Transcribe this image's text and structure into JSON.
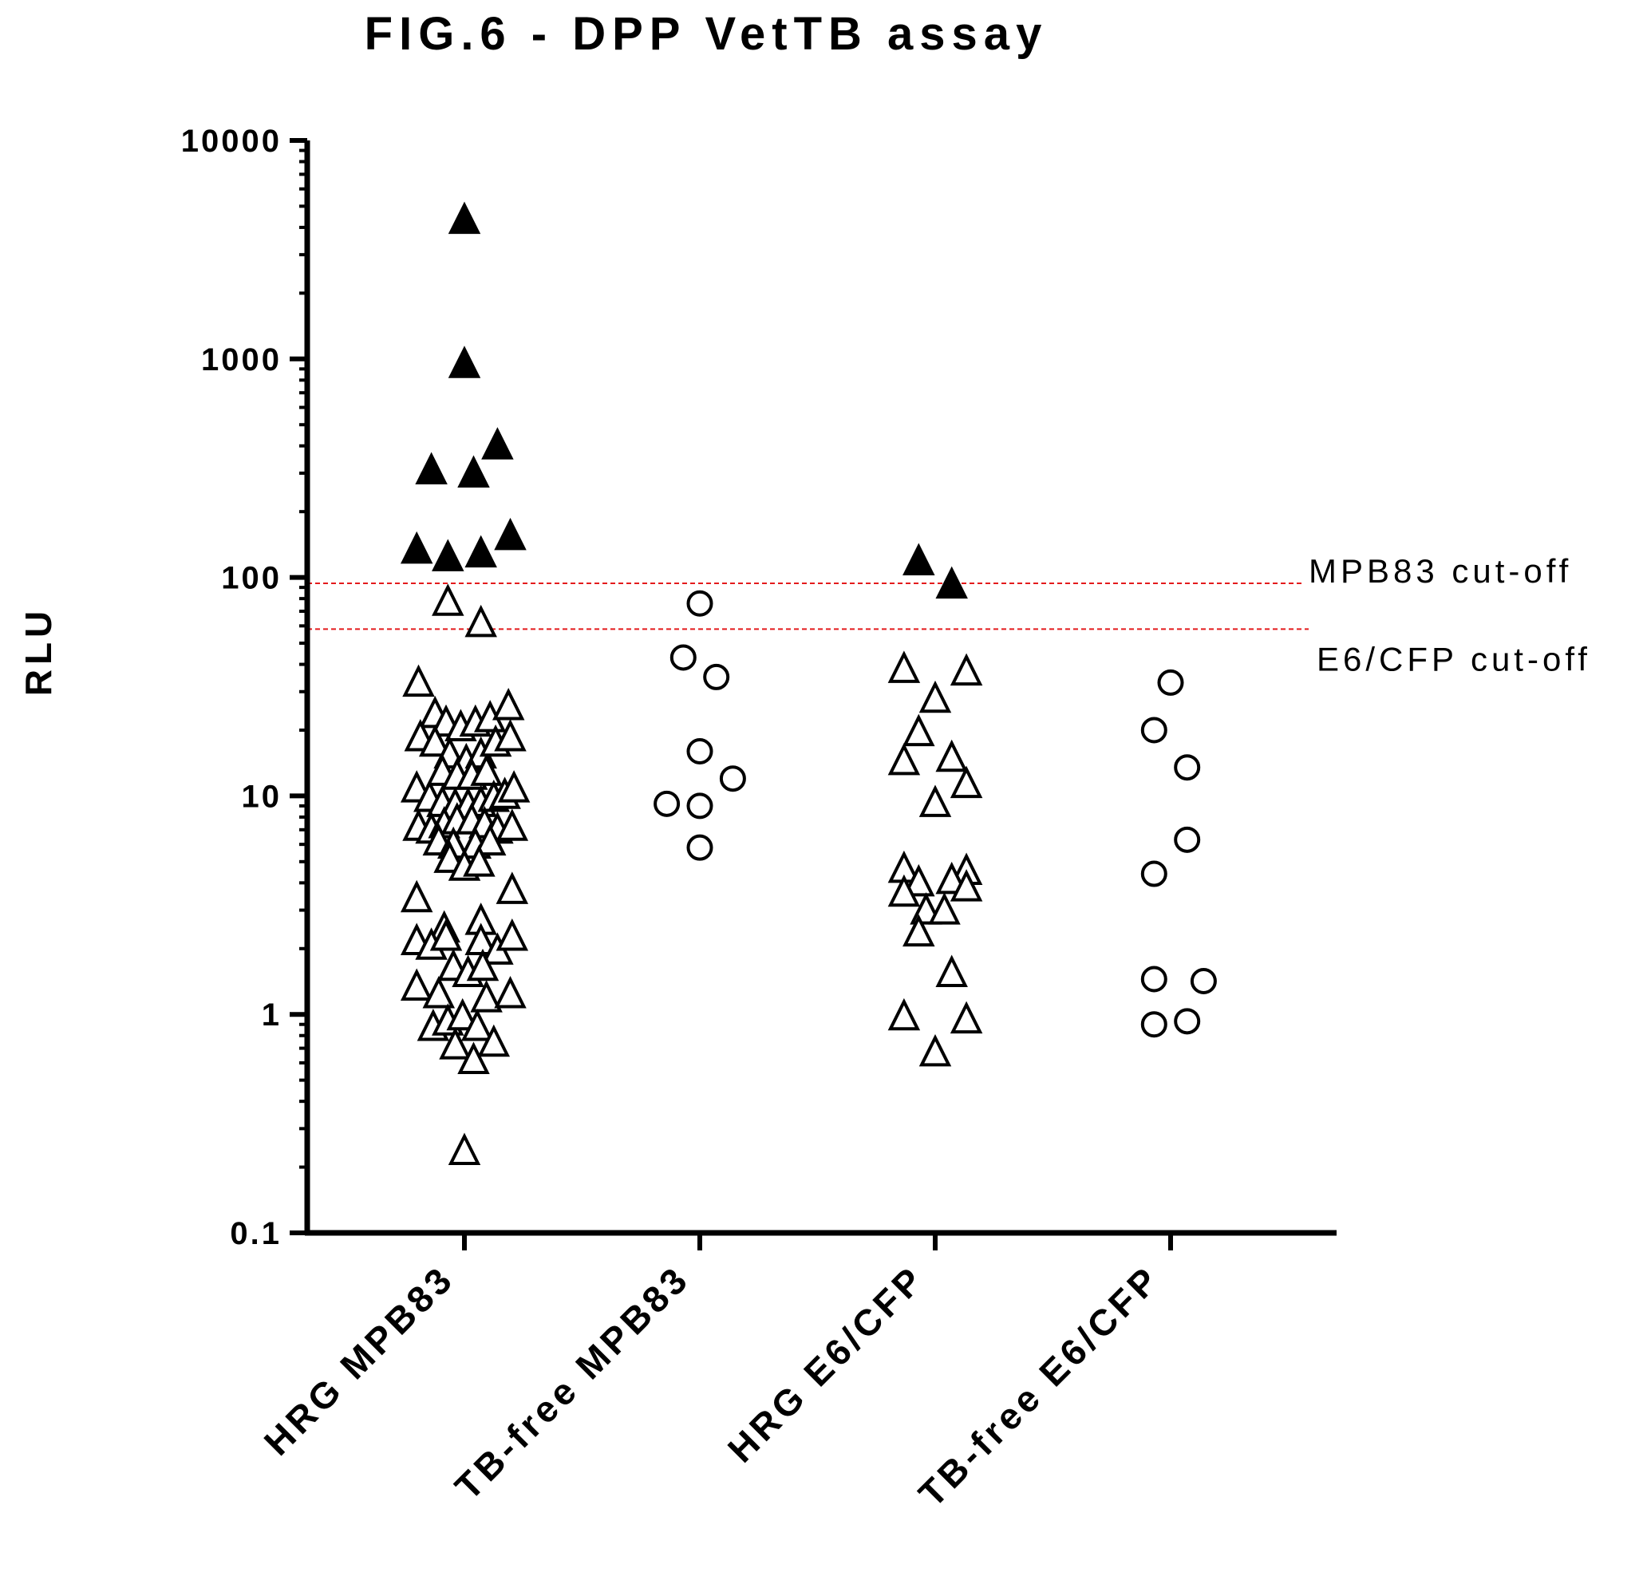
{
  "chart_data": {
    "type": "scatter",
    "title": "FIG.6 - DPP VetTB assay",
    "ylabel": "RLU",
    "xlabel": "",
    "yscale": "log",
    "ylim": [
      0.1,
      10000
    ],
    "yticks": [
      "0.1",
      "1",
      "10",
      "100",
      "1000",
      "10000"
    ],
    "categories": [
      "HRG MPB83",
      "TB-free MPB83",
      "HRG E6/CFP",
      "TB-free E6/CFP"
    ],
    "reference_lines": [
      {
        "label": "MPB83 cut-off",
        "value": 94,
        "color": "#e31a1c"
      },
      {
        "label": "E6/CFP cut-off",
        "value": 58,
        "color": "#e31a1c"
      }
    ],
    "series": [
      {
        "category": "HRG MPB83",
        "marker": "triangle",
        "points": [
          {
            "offset": 0.0,
            "y": 4200,
            "filled": true
          },
          {
            "offset": 0.0,
            "y": 920,
            "filled": true
          },
          {
            "offset": -0.18,
            "y": 300,
            "filled": true
          },
          {
            "offset": 0.05,
            "y": 290,
            "filled": true
          },
          {
            "offset": 0.18,
            "y": 390,
            "filled": true
          },
          {
            "offset": -0.26,
            "y": 130,
            "filled": true
          },
          {
            "offset": -0.09,
            "y": 120,
            "filled": true
          },
          {
            "offset": 0.09,
            "y": 125,
            "filled": true
          },
          {
            "offset": 0.25,
            "y": 150,
            "filled": true
          },
          {
            "offset": -0.09,
            "y": 75,
            "filled": false
          },
          {
            "offset": 0.09,
            "y": 60,
            "filled": false
          },
          {
            "offset": -0.25,
            "y": 32,
            "filled": false
          },
          {
            "offset": -0.16,
            "y": 23,
            "filled": false
          },
          {
            "offset": -0.1,
            "y": 21,
            "filled": false
          },
          {
            "offset": -0.02,
            "y": 20,
            "filled": false
          },
          {
            "offset": 0.06,
            "y": 21,
            "filled": false
          },
          {
            "offset": 0.14,
            "y": 22,
            "filled": false
          },
          {
            "offset": 0.24,
            "y": 25,
            "filled": false
          },
          {
            "offset": -0.24,
            "y": 18,
            "filled": false
          },
          {
            "offset": -0.16,
            "y": 17,
            "filled": false
          },
          {
            "offset": -0.08,
            "y": 15,
            "filled": false
          },
          {
            "offset": 0.01,
            "y": 14,
            "filled": false
          },
          {
            "offset": 0.09,
            "y": 15,
            "filled": false
          },
          {
            "offset": 0.17,
            "y": 17,
            "filled": false
          },
          {
            "offset": 0.25,
            "y": 18,
            "filled": false
          },
          {
            "offset": -0.12,
            "y": 12.5,
            "filled": false
          },
          {
            "offset": -0.04,
            "y": 12,
            "filled": false
          },
          {
            "offset": 0.04,
            "y": 12,
            "filled": false
          },
          {
            "offset": 0.12,
            "y": 12.5,
            "filled": false
          },
          {
            "offset": -0.26,
            "y": 10.5,
            "filled": false
          },
          {
            "offset": -0.19,
            "y": 9.5,
            "filled": false
          },
          {
            "offset": -0.12,
            "y": 9,
            "filled": false
          },
          {
            "offset": -0.05,
            "y": 8.8,
            "filled": false
          },
          {
            "offset": 0.02,
            "y": 8.8,
            "filled": false
          },
          {
            "offset": 0.09,
            "y": 9,
            "filled": false
          },
          {
            "offset": 0.16,
            "y": 9.5,
            "filled": false
          },
          {
            "offset": 0.22,
            "y": 9.8,
            "filled": false
          },
          {
            "offset": 0.27,
            "y": 10.5,
            "filled": false
          },
          {
            "offset": -0.25,
            "y": 7,
            "filled": false
          },
          {
            "offset": -0.18,
            "y": 6.8,
            "filled": false
          },
          {
            "offset": -0.11,
            "y": 7.2,
            "filled": false
          },
          {
            "offset": -0.04,
            "y": 7.5,
            "filled": false
          },
          {
            "offset": 0.04,
            "y": 7.5,
            "filled": false
          },
          {
            "offset": 0.11,
            "y": 7.2,
            "filled": false
          },
          {
            "offset": 0.18,
            "y": 6.8,
            "filled": false
          },
          {
            "offset": 0.26,
            "y": 7,
            "filled": false
          },
          {
            "offset": -0.14,
            "y": 6,
            "filled": false
          },
          {
            "offset": -0.06,
            "y": 5.8,
            "filled": false
          },
          {
            "offset": 0.06,
            "y": 5.8,
            "filled": false
          },
          {
            "offset": 0.14,
            "y": 6,
            "filled": false
          },
          {
            "offset": -0.08,
            "y": 5,
            "filled": false
          },
          {
            "offset": 0.0,
            "y": 4.6,
            "filled": false
          },
          {
            "offset": 0.08,
            "y": 4.8,
            "filled": false
          },
          {
            "offset": -0.26,
            "y": 3.3,
            "filled": false
          },
          {
            "offset": 0.26,
            "y": 3.6,
            "filled": false
          },
          {
            "offset": -0.11,
            "y": 2.4,
            "filled": false
          },
          {
            "offset": 0.09,
            "y": 2.6,
            "filled": false
          },
          {
            "offset": -0.26,
            "y": 2.1,
            "filled": false
          },
          {
            "offset": -0.18,
            "y": 2,
            "filled": false
          },
          {
            "offset": -0.1,
            "y": 2.2,
            "filled": false
          },
          {
            "offset": 0.09,
            "y": 2.1,
            "filled": false
          },
          {
            "offset": 0.18,
            "y": 1.9,
            "filled": false
          },
          {
            "offset": 0.26,
            "y": 2.2,
            "filled": false
          },
          {
            "offset": -0.06,
            "y": 1.6,
            "filled": false
          },
          {
            "offset": 0.02,
            "y": 1.5,
            "filled": false
          },
          {
            "offset": 0.1,
            "y": 1.6,
            "filled": false
          },
          {
            "offset": -0.26,
            "y": 1.3,
            "filled": false
          },
          {
            "offset": -0.14,
            "y": 1.2,
            "filled": false
          },
          {
            "offset": 0.12,
            "y": 1.15,
            "filled": false
          },
          {
            "offset": 0.25,
            "y": 1.2,
            "filled": false
          },
          {
            "offset": -0.17,
            "y": 0.85,
            "filled": false
          },
          {
            "offset": -0.09,
            "y": 0.9,
            "filled": false
          },
          {
            "offset": -0.01,
            "y": 0.95,
            "filled": false
          },
          {
            "offset": 0.07,
            "y": 0.85,
            "filled": false
          },
          {
            "offset": -0.05,
            "y": 0.7,
            "filled": false
          },
          {
            "offset": 0.05,
            "y": 0.6,
            "filled": false
          },
          {
            "offset": 0.16,
            "y": 0.72,
            "filled": false
          },
          {
            "offset": 0.0,
            "y": 0.23,
            "filled": false
          }
        ]
      },
      {
        "category": "TB-free MPB83",
        "marker": "circle",
        "points": [
          {
            "offset": 0.0,
            "y": 76,
            "filled": false
          },
          {
            "offset": -0.09,
            "y": 43,
            "filled": false
          },
          {
            "offset": 0.09,
            "y": 35,
            "filled": false
          },
          {
            "offset": 0.0,
            "y": 16,
            "filled": false
          },
          {
            "offset": 0.18,
            "y": 12,
            "filled": false
          },
          {
            "offset": -0.18,
            "y": 9.2,
            "filled": false
          },
          {
            "offset": 0.0,
            "y": 9,
            "filled": false
          },
          {
            "offset": 0.0,
            "y": 5.8,
            "filled": false
          }
        ]
      },
      {
        "category": "HRG E6/CFP",
        "marker": "triangle",
        "points": [
          {
            "offset": -0.09,
            "y": 115,
            "filled": true
          },
          {
            "offset": 0.09,
            "y": 90,
            "filled": true
          },
          {
            "offset": -0.17,
            "y": 37,
            "filled": false
          },
          {
            "offset": 0.17,
            "y": 36,
            "filled": false
          },
          {
            "offset": 0.0,
            "y": 27,
            "filled": false
          },
          {
            "offset": -0.09,
            "y": 19,
            "filled": false
          },
          {
            "offset": -0.17,
            "y": 14,
            "filled": false
          },
          {
            "offset": 0.09,
            "y": 14.5,
            "filled": false
          },
          {
            "offset": 0.17,
            "y": 11,
            "filled": false
          },
          {
            "offset": 0.0,
            "y": 9,
            "filled": false
          },
          {
            "offset": -0.17,
            "y": 4.5,
            "filled": false
          },
          {
            "offset": 0.17,
            "y": 4.4,
            "filled": false
          },
          {
            "offset": -0.09,
            "y": 3.9,
            "filled": false
          },
          {
            "offset": 0.09,
            "y": 4.0,
            "filled": false
          },
          {
            "offset": -0.17,
            "y": 3.5,
            "filled": false
          },
          {
            "offset": 0.17,
            "y": 3.7,
            "filled": false
          },
          {
            "offset": -0.05,
            "y": 2.9,
            "filled": false
          },
          {
            "offset": 0.05,
            "y": 2.9,
            "filled": false
          },
          {
            "offset": -0.09,
            "y": 2.3,
            "filled": false
          },
          {
            "offset": 0.09,
            "y": 1.5,
            "filled": false
          },
          {
            "offset": -0.17,
            "y": 0.95,
            "filled": false
          },
          {
            "offset": 0.17,
            "y": 0.92,
            "filled": false
          },
          {
            "offset": 0.0,
            "y": 0.65,
            "filled": false
          }
        ]
      },
      {
        "category": "TB-free E6/CFP",
        "marker": "circle",
        "points": [
          {
            "offset": 0.0,
            "y": 33,
            "filled": false
          },
          {
            "offset": -0.09,
            "y": 20,
            "filled": false
          },
          {
            "offset": 0.09,
            "y": 13.5,
            "filled": false
          },
          {
            "offset": 0.09,
            "y": 6.3,
            "filled": false
          },
          {
            "offset": -0.09,
            "y": 4.4,
            "filled": false
          },
          {
            "offset": -0.09,
            "y": 1.45,
            "filled": false
          },
          {
            "offset": 0.18,
            "y": 1.42,
            "filled": false
          },
          {
            "offset": -0.09,
            "y": 0.9,
            "filled": false
          },
          {
            "offset": 0.09,
            "y": 0.93,
            "filled": false
          }
        ]
      }
    ]
  }
}
